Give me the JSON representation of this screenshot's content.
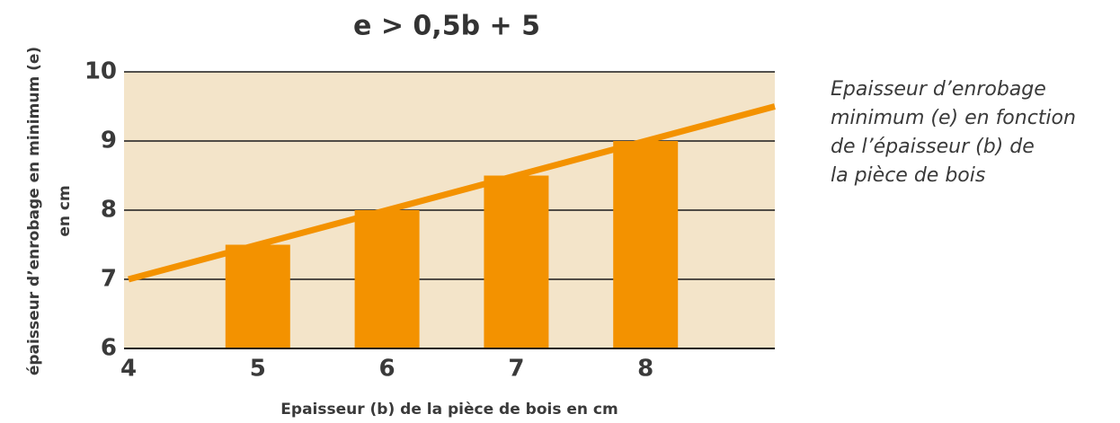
{
  "chart_data": {
    "type": "bar",
    "title": "e > 0,5b + 5",
    "xlabel": "Epaisseur (b) de la pièce de bois en cm",
    "ylabel": [
      "épaisseur d’enrobage en minimum (e)",
      "en cm"
    ],
    "annotation": [
      "Epaisseur d’enrobage",
      "minimum (e) en fonction",
      "de l’épaisseur (b) de",
      "la pièce de bois"
    ],
    "bars": {
      "x": [
        5,
        6,
        7,
        8
      ],
      "values": [
        7.5,
        8,
        8.5,
        9
      ],
      "color": "#f39200"
    },
    "line": {
      "x": [
        4,
        9
      ],
      "values": [
        7,
        9.5
      ],
      "color": "#f39200"
    },
    "xlim": [
      4,
      9
    ],
    "xticks": [
      4,
      5,
      6,
      7,
      8
    ],
    "ylim": [
      6,
      10
    ],
    "yticks": [
      6,
      7,
      8,
      9,
      10
    ],
    "grid": true,
    "background": "#f3e4c9"
  }
}
